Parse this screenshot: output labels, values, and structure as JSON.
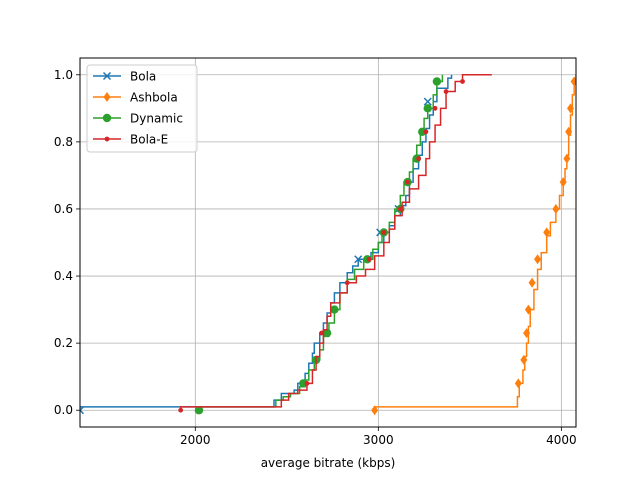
{
  "chart_data": {
    "type": "line",
    "subtype": "step-cdf",
    "title": "",
    "xlabel": "average bitrate (kbps)",
    "ylabel": "",
    "xlim": [
      1370,
      4080
    ],
    "ylim": [
      -0.05,
      1.05
    ],
    "xticks": [
      2000,
      3000,
      4000
    ],
    "yticks": [
      0.0,
      0.2,
      0.4,
      0.6,
      0.8,
      1.0
    ],
    "xtick_labels": [
      "2000",
      "3000",
      "4000"
    ],
    "ytick_labels": [
      "0.0",
      "0.2",
      "0.4",
      "0.6",
      "0.8",
      "1.0"
    ],
    "grid": true,
    "legend_position": "upper-left",
    "series": [
      {
        "name": "Bola",
        "color": "#1f77b4",
        "marker": "x",
        "points": [
          [
            1370,
            0.01
          ],
          [
            2420,
            0.01
          ],
          [
            2430,
            0.03
          ],
          [
            2460,
            0.03
          ],
          [
            2470,
            0.05
          ],
          [
            2540,
            0.06
          ],
          [
            2560,
            0.08
          ],
          [
            2600,
            0.11
          ],
          [
            2620,
            0.14
          ],
          [
            2640,
            0.17
          ],
          [
            2650,
            0.2
          ],
          [
            2680,
            0.23
          ],
          [
            2700,
            0.26
          ],
          [
            2720,
            0.29
          ],
          [
            2740,
            0.32
          ],
          [
            2760,
            0.35
          ],
          [
            2790,
            0.38
          ],
          [
            2830,
            0.41
          ],
          [
            2860,
            0.43
          ],
          [
            2890,
            0.45
          ],
          [
            2930,
            0.45
          ],
          [
            2960,
            0.47
          ],
          [
            3000,
            0.5
          ],
          [
            3030,
            0.53
          ],
          [
            3060,
            0.55
          ],
          [
            3090,
            0.58
          ],
          [
            3120,
            0.61
          ],
          [
            3150,
            0.64
          ],
          [
            3170,
            0.68
          ],
          [
            3190,
            0.72
          ],
          [
            3220,
            0.76
          ],
          [
            3240,
            0.8
          ],
          [
            3260,
            0.84
          ],
          [
            3280,
            0.88
          ],
          [
            3300,
            0.92
          ],
          [
            3320,
            0.96
          ],
          [
            3380,
            0.99
          ],
          [
            3400,
            1.0
          ]
        ],
        "markers": [
          [
            1370,
            0.0
          ],
          [
            2890,
            0.45
          ],
          [
            3010,
            0.53
          ],
          [
            3110,
            0.6
          ],
          [
            3270,
            0.92
          ]
        ]
      },
      {
        "name": "Ashbola",
        "color": "#ff7f0e",
        "marker": "diamond",
        "points": [
          [
            2980,
            0.0
          ],
          [
            2980,
            0.01
          ],
          [
            3740,
            0.01
          ],
          [
            3760,
            0.04
          ],
          [
            3770,
            0.08
          ],
          [
            3790,
            0.12
          ],
          [
            3800,
            0.16
          ],
          [
            3810,
            0.2
          ],
          [
            3820,
            0.25
          ],
          [
            3830,
            0.3
          ],
          [
            3850,
            0.36
          ],
          [
            3870,
            0.42
          ],
          [
            3890,
            0.47
          ],
          [
            3920,
            0.52
          ],
          [
            3940,
            0.56
          ],
          [
            3970,
            0.6
          ],
          [
            3990,
            0.64
          ],
          [
            4010,
            0.68
          ],
          [
            4020,
            0.72
          ],
          [
            4030,
            0.76
          ],
          [
            4040,
            0.82
          ],
          [
            4050,
            0.88
          ],
          [
            4060,
            0.94
          ],
          [
            4070,
            0.98
          ],
          [
            4080,
            1.0
          ]
        ],
        "markers": [
          [
            2980,
            0.0
          ],
          [
            3765,
            0.08
          ],
          [
            3795,
            0.15
          ],
          [
            3810,
            0.23
          ],
          [
            3820,
            0.3
          ],
          [
            3840,
            0.38
          ],
          [
            3870,
            0.45
          ],
          [
            3920,
            0.53
          ],
          [
            3970,
            0.6
          ],
          [
            4010,
            0.68
          ],
          [
            4030,
            0.75
          ],
          [
            4040,
            0.83
          ],
          [
            4050,
            0.9
          ],
          [
            4070,
            0.98
          ]
        ]
      },
      {
        "name": "Dynamic",
        "color": "#2ca02c",
        "marker": "circle",
        "points": [
          [
            2020,
            0.0
          ],
          [
            2020,
            0.01
          ],
          [
            2430,
            0.01
          ],
          [
            2440,
            0.03
          ],
          [
            2480,
            0.04
          ],
          [
            2520,
            0.05
          ],
          [
            2570,
            0.07
          ],
          [
            2600,
            0.09
          ],
          [
            2620,
            0.12
          ],
          [
            2650,
            0.15
          ],
          [
            2680,
            0.18
          ],
          [
            2700,
            0.22
          ],
          [
            2730,
            0.26
          ],
          [
            2760,
            0.3
          ],
          [
            2790,
            0.35
          ],
          [
            2830,
            0.39
          ],
          [
            2870,
            0.42
          ],
          [
            2920,
            0.45
          ],
          [
            2970,
            0.48
          ],
          [
            3000,
            0.5
          ],
          [
            3020,
            0.53
          ],
          [
            3060,
            0.56
          ],
          [
            3090,
            0.6
          ],
          [
            3120,
            0.64
          ],
          [
            3140,
            0.68
          ],
          [
            3170,
            0.71
          ],
          [
            3190,
            0.75
          ],
          [
            3210,
            0.79
          ],
          [
            3230,
            0.83
          ],
          [
            3250,
            0.87
          ],
          [
            3270,
            0.9
          ],
          [
            3300,
            0.94
          ],
          [
            3320,
            0.98
          ],
          [
            3350,
            1.0
          ]
        ],
        "markers": [
          [
            2020,
            0.0
          ],
          [
            2590,
            0.08
          ],
          [
            2660,
            0.15
          ],
          [
            2720,
            0.23
          ],
          [
            2760,
            0.3
          ],
          [
            2940,
            0.45
          ],
          [
            3030,
            0.53
          ],
          [
            3120,
            0.6
          ],
          [
            3160,
            0.68
          ],
          [
            3210,
            0.75
          ],
          [
            3240,
            0.83
          ],
          [
            3270,
            0.9
          ],
          [
            3320,
            0.98
          ]
        ]
      },
      {
        "name": "Bola-E",
        "color": "#d62728",
        "marker": "point",
        "points": [
          [
            1920,
            0.0
          ],
          [
            1920,
            0.01
          ],
          [
            2450,
            0.01
          ],
          [
            2470,
            0.03
          ],
          [
            2510,
            0.05
          ],
          [
            2560,
            0.06
          ],
          [
            2610,
            0.08
          ],
          [
            2640,
            0.12
          ],
          [
            2660,
            0.16
          ],
          [
            2680,
            0.2
          ],
          [
            2700,
            0.24
          ],
          [
            2720,
            0.28
          ],
          [
            2740,
            0.32
          ],
          [
            2790,
            0.35
          ],
          [
            2830,
            0.38
          ],
          [
            2880,
            0.4
          ],
          [
            2930,
            0.42
          ],
          [
            2980,
            0.46
          ],
          [
            3030,
            0.5
          ],
          [
            3060,
            0.54
          ],
          [
            3090,
            0.58
          ],
          [
            3130,
            0.62
          ],
          [
            3170,
            0.66
          ],
          [
            3220,
            0.7
          ],
          [
            3260,
            0.75
          ],
          [
            3280,
            0.8
          ],
          [
            3310,
            0.85
          ],
          [
            3340,
            0.9
          ],
          [
            3370,
            0.95
          ],
          [
            3420,
            0.98
          ],
          [
            3460,
            1.0
          ],
          [
            3620,
            1.0
          ]
        ],
        "markers": [
          [
            1920,
            0.0
          ],
          [
            2610,
            0.08
          ],
          [
            2690,
            0.23
          ],
          [
            2830,
            0.38
          ],
          [
            2950,
            0.45
          ],
          [
            3030,
            0.53
          ],
          [
            3120,
            0.6
          ],
          [
            3160,
            0.68
          ],
          [
            3220,
            0.75
          ],
          [
            3260,
            0.83
          ],
          [
            3310,
            0.9
          ],
          [
            3370,
            0.95
          ],
          [
            3460,
            0.98
          ]
        ]
      }
    ]
  }
}
